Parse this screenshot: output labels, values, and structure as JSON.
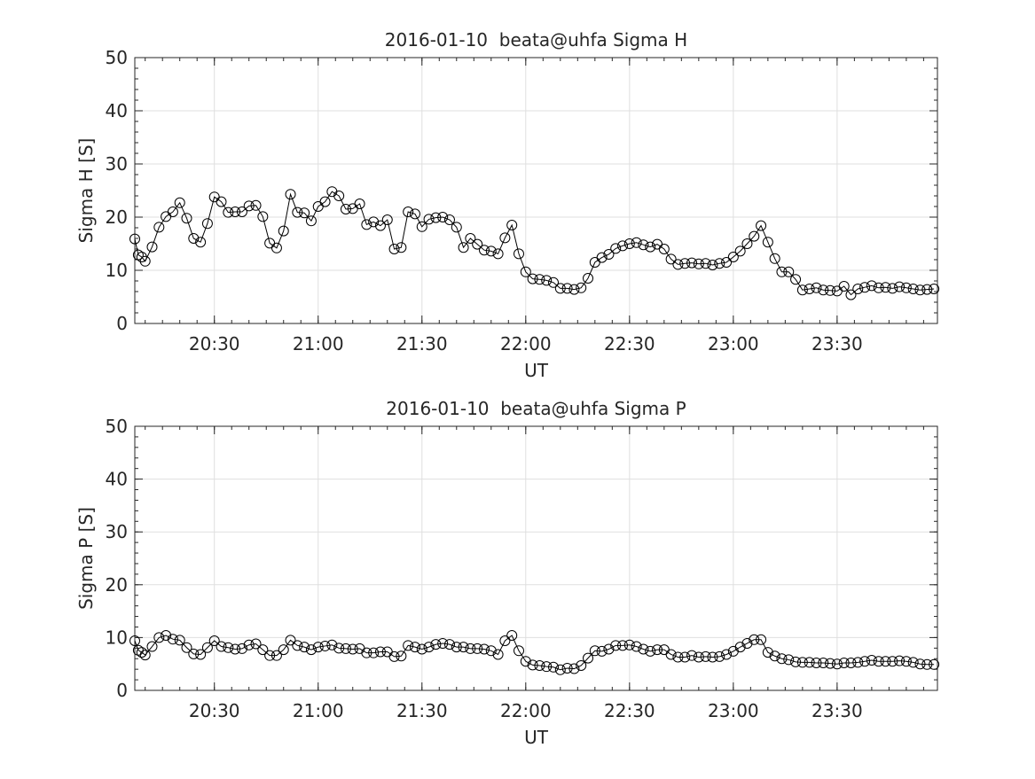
{
  "chart_data": [
    {
      "type": "line",
      "title": "2016-01-10  beata@uhfa Sigma H",
      "xlabel": "UT",
      "ylabel": "Sigma H [S]",
      "xlim": [
        "20:07",
        "23:59"
      ],
      "ylim": [
        0,
        50
      ],
      "yticks": [
        0,
        10,
        20,
        30,
        40,
        50
      ],
      "xticks": [
        "20:30",
        "21:00",
        "21:30",
        "22:00",
        "22:30",
        "23:00",
        "23:30"
      ],
      "grid": true,
      "marker": "open-circle",
      "line_color": "#000000",
      "x": [
        "20:07",
        "20:08",
        "20:09",
        "20:10",
        "20:12",
        "20:14",
        "20:16",
        "20:18",
        "20:20",
        "20:22",
        "20:24",
        "20:26",
        "20:28",
        "20:30",
        "20:32",
        "20:34",
        "20:36",
        "20:38",
        "20:40",
        "20:42",
        "20:44",
        "20:46",
        "20:48",
        "20:50",
        "20:52",
        "20:54",
        "20:56",
        "20:58",
        "21:00",
        "21:02",
        "21:04",
        "21:06",
        "21:08",
        "21:10",
        "21:12",
        "21:14",
        "21:16",
        "21:18",
        "21:20",
        "21:22",
        "21:24",
        "21:26",
        "21:28",
        "21:30",
        "21:32",
        "21:34",
        "21:36",
        "21:38",
        "21:40",
        "21:42",
        "21:44",
        "21:46",
        "21:48",
        "21:50",
        "21:52",
        "21:54",
        "21:56",
        "21:58",
        "22:00",
        "22:02",
        "22:04",
        "22:06",
        "22:08",
        "22:10",
        "22:12",
        "22:14",
        "22:16",
        "22:18",
        "22:20",
        "22:22",
        "22:24",
        "22:26",
        "22:28",
        "22:30",
        "22:32",
        "22:34",
        "22:36",
        "22:38",
        "22:40",
        "22:42",
        "22:44",
        "22:46",
        "22:48",
        "22:50",
        "22:52",
        "22:54",
        "22:56",
        "22:58",
        "23:00",
        "23:02",
        "23:04",
        "23:06",
        "23:08",
        "23:10",
        "23:12",
        "23:14",
        "23:16",
        "23:18",
        "23:20",
        "23:22",
        "23:24",
        "23:26",
        "23:28",
        "23:30",
        "23:32",
        "23:34",
        "23:36",
        "23:38",
        "23:40",
        "23:42",
        "23:44",
        "23:46",
        "23:48",
        "23:50",
        "23:52",
        "23:54",
        "23:56",
        "23:58"
      ],
      "values": [
        15.9,
        12.9,
        12.5,
        11.7,
        14.4,
        18.1,
        20.1,
        21.0,
        22.7,
        19.8,
        16.0,
        15.3,
        18.8,
        23.8,
        22.9,
        20.9,
        21.0,
        21.0,
        22.1,
        22.2,
        20.1,
        15.1,
        14.2,
        17.4,
        24.3,
        20.9,
        20.8,
        19.3,
        22.0,
        22.9,
        24.8,
        24.0,
        21.5,
        21.6,
        22.5,
        18.6,
        19.1,
        18.4,
        19.5,
        14.0,
        14.3,
        21.0,
        20.6,
        18.2,
        19.6,
        19.9,
        20.0,
        19.5,
        18.1,
        14.3,
        16.0,
        14.9,
        13.8,
        13.6,
        13.1,
        16.1,
        18.5,
        13.1,
        9.7,
        8.4,
        8.3,
        8.1,
        7.7,
        6.6,
        6.6,
        6.4,
        6.7,
        8.5,
        11.5,
        12.4,
        13.0,
        14.1,
        14.6,
        15.0,
        15.2,
        14.8,
        14.4,
        14.9,
        14.0,
        12.1,
        11.1,
        11.3,
        11.4,
        11.2,
        11.3,
        11.0,
        11.3,
        11.5,
        12.5,
        13.6,
        15.0,
        16.4,
        18.4,
        15.3,
        12.2,
        9.7,
        9.7,
        8.3,
        6.3,
        6.5,
        6.7,
        6.3,
        6.2,
        6.1,
        7.0,
        5.4,
        6.5,
        6.8,
        7.1,
        6.7,
        6.8,
        6.6,
        6.9,
        6.7,
        6.5,
        6.3,
        6.4,
        6.5
      ]
    },
    {
      "type": "line",
      "title": "2016-01-10  beata@uhfa Sigma P",
      "xlabel": "UT",
      "ylabel": "Sigma P [S]",
      "xlim": [
        "20:07",
        "23:59"
      ],
      "ylim": [
        0,
        50
      ],
      "yticks": [
        0,
        10,
        20,
        30,
        40,
        50
      ],
      "xticks": [
        "20:30",
        "21:00",
        "21:30",
        "22:00",
        "22:30",
        "23:00",
        "23:30"
      ],
      "grid": true,
      "marker": "open-circle",
      "line_color": "#000000",
      "x": [
        "20:07",
        "20:08",
        "20:09",
        "20:10",
        "20:12",
        "20:14",
        "20:16",
        "20:18",
        "20:20",
        "20:22",
        "20:24",
        "20:26",
        "20:28",
        "20:30",
        "20:32",
        "20:34",
        "20:36",
        "20:38",
        "20:40",
        "20:42",
        "20:44",
        "20:46",
        "20:48",
        "20:50",
        "20:52",
        "20:54",
        "20:56",
        "20:58",
        "21:00",
        "21:02",
        "21:04",
        "21:06",
        "21:08",
        "21:10",
        "21:12",
        "21:14",
        "21:16",
        "21:18",
        "21:20",
        "21:22",
        "21:24",
        "21:26",
        "21:28",
        "21:30",
        "21:32",
        "21:34",
        "21:36",
        "21:38",
        "21:40",
        "21:42",
        "21:44",
        "21:46",
        "21:48",
        "21:50",
        "21:52",
        "21:54",
        "21:56",
        "21:58",
        "22:00",
        "22:02",
        "22:04",
        "22:06",
        "22:08",
        "22:10",
        "22:12",
        "22:14",
        "22:16",
        "22:18",
        "22:20",
        "22:22",
        "22:24",
        "22:26",
        "22:28",
        "22:30",
        "22:32",
        "22:34",
        "22:36",
        "22:38",
        "22:40",
        "22:42",
        "22:44",
        "22:46",
        "22:48",
        "22:50",
        "22:52",
        "22:54",
        "22:56",
        "22:58",
        "23:00",
        "23:02",
        "23:04",
        "23:06",
        "23:08",
        "23:10",
        "23:12",
        "23:14",
        "23:16",
        "23:18",
        "23:20",
        "23:22",
        "23:24",
        "23:26",
        "23:28",
        "23:30",
        "23:32",
        "23:34",
        "23:36",
        "23:38",
        "23:40",
        "23:42",
        "23:44",
        "23:46",
        "23:48",
        "23:50",
        "23:52",
        "23:54",
        "23:56",
        "23:58"
      ],
      "values": [
        9.4,
        7.6,
        7.2,
        6.7,
        8.3,
        10.0,
        10.4,
        9.7,
        9.5,
        8.1,
        6.9,
        6.8,
        8.1,
        9.4,
        8.3,
        8.1,
        7.8,
        7.9,
        8.6,
        8.8,
        7.7,
        6.6,
        6.6,
        7.7,
        9.5,
        8.5,
        8.2,
        7.7,
        8.2,
        8.4,
        8.6,
        8.0,
        7.9,
        7.8,
        7.9,
        7.1,
        7.1,
        7.3,
        7.3,
        6.4,
        6.5,
        8.5,
        8.2,
        7.8,
        8.2,
        8.7,
        8.9,
        8.7,
        8.2,
        8.2,
        7.9,
        7.9,
        7.8,
        7.5,
        6.8,
        9.4,
        10.4,
        7.5,
        5.5,
        4.8,
        4.7,
        4.5,
        4.4,
        3.9,
        4.2,
        4.1,
        4.7,
        6.1,
        7.5,
        7.4,
        7.8,
        8.5,
        8.5,
        8.6,
        8.3,
        7.8,
        7.4,
        7.7,
        7.7,
        6.8,
        6.3,
        6.3,
        6.6,
        6.3,
        6.4,
        6.3,
        6.4,
        6.8,
        7.4,
        8.2,
        8.9,
        9.6,
        9.6,
        7.2,
        6.5,
        6.0,
        5.8,
        5.4,
        5.3,
        5.3,
        5.2,
        5.2,
        5.1,
        5.0,
        5.2,
        5.2,
        5.3,
        5.5,
        5.7,
        5.5,
        5.5,
        5.5,
        5.6,
        5.5,
        5.3,
        5.0,
        4.9,
        4.9
      ]
    }
  ]
}
